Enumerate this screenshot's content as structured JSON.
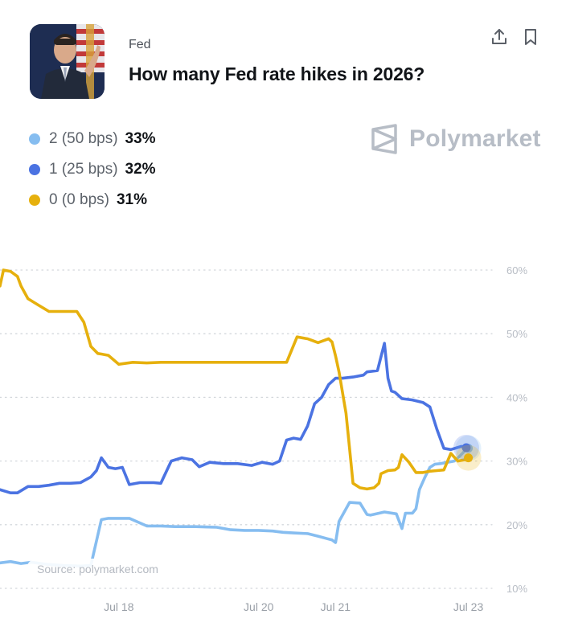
{
  "header": {
    "category": "Fed",
    "title": "How many Fed rate hikes in 2026?",
    "share_icon": "share-icon",
    "bookmark_icon": "bookmark-icon",
    "avatar_icon": "person-portrait-icon"
  },
  "brand": {
    "name": "Polymarket",
    "logo_icon": "polymarket-logo-icon",
    "color": "#b7bdc6"
  },
  "legend": [
    {
      "name": "2 (50 bps)",
      "value": "33%",
      "color": "#86bdf0"
    },
    {
      "name": "1 (25 bps)",
      "value": "32%",
      "color": "#4b73e2"
    },
    {
      "name": "0 (0 bps)",
      "value": "31%",
      "color": "#e6b00d"
    }
  ],
  "source": "Source: polymarket.com",
  "chart_data": {
    "type": "line",
    "x_tick_labels": [
      "Jul 18",
      "Jul 20",
      "Jul 21",
      "Jul 23"
    ],
    "x_tick_positions": [
      18,
      20,
      21.1,
      23
    ],
    "xlim": [
      16.3,
      23.35
    ],
    "ylim": [
      10,
      62
    ],
    "y_ticks": [
      10,
      20,
      30,
      40,
      50,
      60
    ],
    "y_tick_labels": [
      "10%",
      "20%",
      "30%",
      "40%",
      "50%",
      "60%"
    ],
    "grid": true,
    "series": [
      {
        "name": "2 (50 bps)",
        "color": "#86bdf0",
        "x": [
          16.3,
          16.45,
          16.6,
          16.75,
          16.95,
          17.2,
          17.45,
          17.6,
          17.75,
          17.85,
          18,
          18.15,
          18.4,
          18.6,
          18.8,
          19.1,
          19.4,
          19.6,
          19.8,
          20,
          20.2,
          20.35,
          20.5,
          20.7,
          20.85,
          20.98,
          21.05,
          21.1,
          21.15,
          21.3,
          21.45,
          21.55,
          21.6,
          21.8,
          21.97,
          22.05,
          22.1,
          22.2,
          22.25,
          22.3,
          22.38,
          22.45,
          22.52,
          22.6,
          22.7,
          22.8,
          22.88,
          22.94,
          23.0
        ],
        "values": [
          14,
          14.2,
          13.9,
          14.1,
          13.8,
          13.6,
          13.5,
          13.6,
          20.8,
          21,
          21,
          21,
          19.8,
          19.8,
          19.7,
          19.7,
          19.6,
          19.2,
          19.1,
          19.1,
          19.0,
          18.8,
          18.7,
          18.6,
          18.2,
          17.8,
          17.6,
          17.2,
          20.5,
          23.5,
          23.4,
          21.6,
          21.5,
          22.0,
          21.7,
          19.4,
          21.8,
          21.8,
          22.5,
          25.5,
          27.5,
          29.0,
          29.5,
          29.6,
          29.8,
          30.0,
          30.8,
          31.5,
          32.0
        ]
      },
      {
        "name": "1 (25 bps)",
        "color": "#4b73e2",
        "x": [
          16.3,
          16.45,
          16.55,
          16.7,
          16.85,
          17.0,
          17.15,
          17.3,
          17.45,
          17.6,
          17.68,
          17.75,
          17.85,
          17.95,
          18.05,
          18.15,
          18.3,
          18.5,
          18.6,
          18.75,
          18.9,
          19.05,
          19.15,
          19.3,
          19.5,
          19.7,
          19.9,
          20.05,
          20.2,
          20.3,
          20.4,
          20.5,
          20.6,
          20.7,
          20.8,
          20.9,
          21.0,
          21.1,
          21.2,
          21.35,
          21.5,
          21.55,
          21.7,
          21.8,
          21.85,
          21.9,
          21.95,
          22.05,
          22.2,
          22.35,
          22.45,
          22.55,
          22.65,
          22.75,
          22.9,
          22.97
        ],
        "values": [
          25.5,
          25,
          25,
          26,
          26,
          26.2,
          26.5,
          26.5,
          26.6,
          27.5,
          28.5,
          30.5,
          29,
          28.8,
          29,
          26.3,
          26.6,
          26.6,
          26.5,
          30,
          30.5,
          30.2,
          29.1,
          29.8,
          29.6,
          29.6,
          29.3,
          29.8,
          29.5,
          30,
          33.3,
          33.6,
          33.4,
          35.5,
          39,
          40,
          42,
          43,
          43,
          43.2,
          43.5,
          44,
          44.2,
          48.5,
          43,
          41,
          40.8,
          39.8,
          39.6,
          39.2,
          38.5,
          35,
          32,
          31.8,
          32.3,
          32.1
        ]
      },
      {
        "name": "0 (0 bps)",
        "color": "#e6b00d",
        "x": [
          16.3,
          16.35,
          16.45,
          16.55,
          16.6,
          16.7,
          16.85,
          17.0,
          17.2,
          17.3,
          17.4,
          17.5,
          17.6,
          17.7,
          17.75,
          17.85,
          18.0,
          18.2,
          18.4,
          18.6,
          18.8,
          19.0,
          19.2,
          19.4,
          19.6,
          19.8,
          19.9,
          20.0,
          20.1,
          20.25,
          20.4,
          20.55,
          20.7,
          20.75,
          20.85,
          20.9,
          21.0,
          21.05,
          21.1,
          21.15,
          21.25,
          21.3,
          21.35,
          21.45,
          21.55,
          21.65,
          21.72,
          21.75,
          21.85,
          21.95,
          22.0,
          22.05,
          22.15,
          22.25,
          22.35,
          22.45,
          22.55,
          22.65,
          22.75,
          22.85,
          22.95,
          23.0
        ],
        "values": [
          57.5,
          60,
          59.8,
          59,
          57.5,
          55.5,
          54.5,
          53.5,
          53.5,
          53.5,
          53.5,
          51.8,
          48,
          46.9,
          46.8,
          46.6,
          45.2,
          45.5,
          45.4,
          45.5,
          45.5,
          45.5,
          45.5,
          45.5,
          45.5,
          45.5,
          45.5,
          45.5,
          45.5,
          45.5,
          45.5,
          49.5,
          49.2,
          49.0,
          48.6,
          48.8,
          49.2,
          48.7,
          46.5,
          44,
          37.5,
          32,
          26.5,
          25.8,
          25.6,
          25.8,
          26.5,
          28,
          28.5,
          28.6,
          29,
          31,
          29.8,
          28.2,
          28.2,
          28.4,
          28.5,
          28.6,
          31.2,
          30.0,
          30.2,
          30.5
        ]
      }
    ]
  }
}
